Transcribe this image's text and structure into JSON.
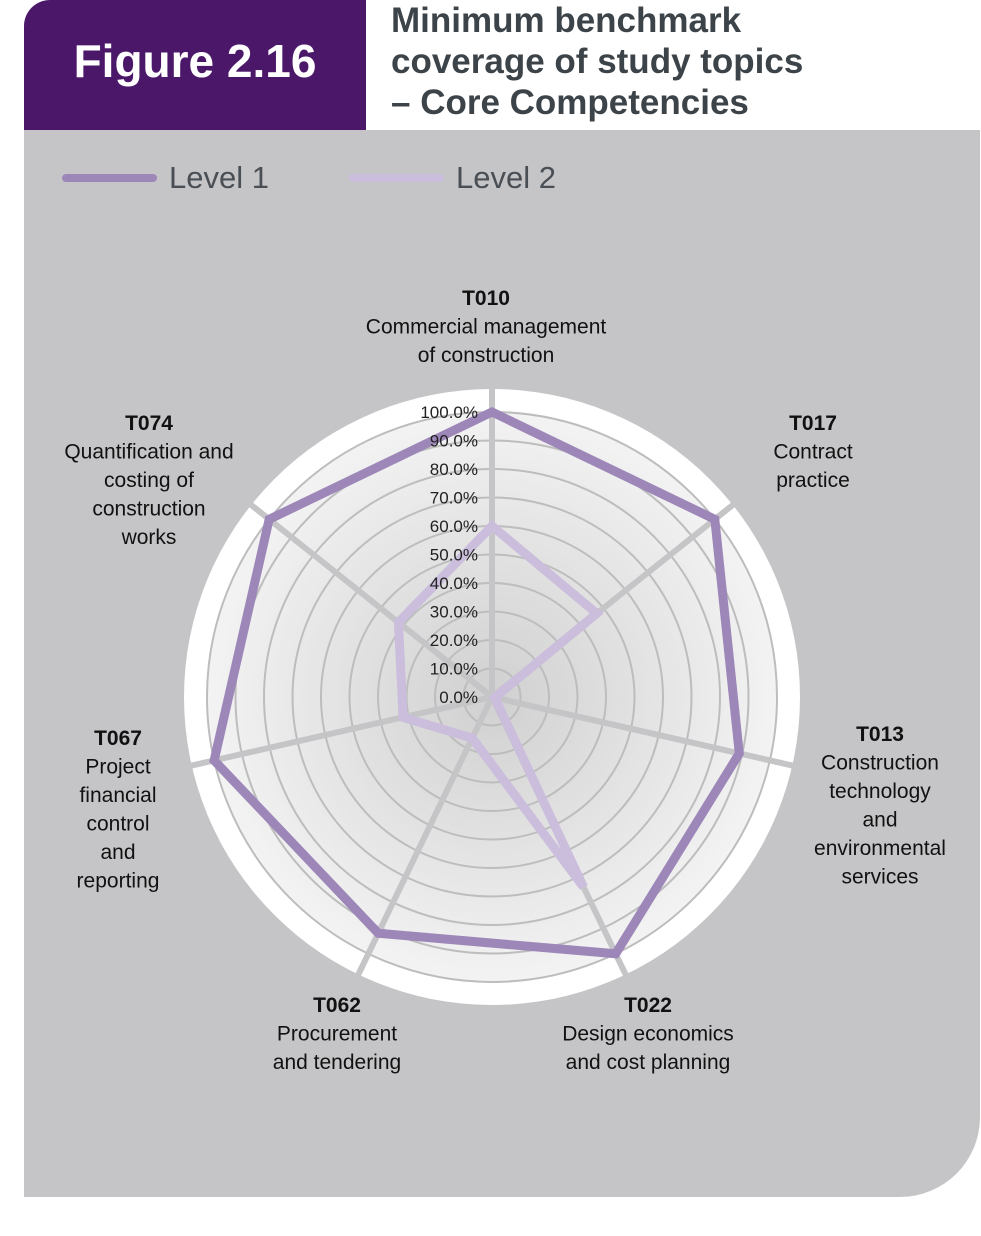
{
  "figure_label": "Figure 2.16",
  "title_lines": [
    "Minimum benchmark",
    "coverage of study topics",
    "– Core Competencies"
  ],
  "chart_data": {
    "type": "radar",
    "title": "Minimum benchmark coverage of study topics – Core Competencies",
    "categories": [
      {
        "code": "T010",
        "name_lines": [
          "Commercial management",
          "of construction"
        ]
      },
      {
        "code": "T017",
        "name_lines": [
          "Contract",
          "practice"
        ]
      },
      {
        "code": "T013",
        "name_lines": [
          "Construction",
          "technology",
          "and",
          "environmental",
          "services"
        ]
      },
      {
        "code": "T022",
        "name_lines": [
          "Design economics",
          "and cost planning"
        ]
      },
      {
        "code": "T062",
        "name_lines": [
          "Procurement",
          "and tendering"
        ]
      },
      {
        "code": "T067",
        "name_lines": [
          "Project",
          "financial",
          "control",
          "and",
          "reporting"
        ]
      },
      {
        "code": "T074",
        "name_lines": [
          "Quantification and",
          "costing of",
          "construction",
          "works"
        ]
      }
    ],
    "series": [
      {
        "name": "Level 1",
        "color": "#9d87b8",
        "values": [
          100,
          100,
          89,
          100,
          92,
          100,
          100
        ]
      },
      {
        "name": "Level 2",
        "color": "#cbbddc",
        "values": [
          60,
          47,
          1,
          74,
          16,
          32,
          42
        ]
      }
    ],
    "rlim": [
      0,
      100
    ],
    "tick_labels": [
      "0.0%",
      "10.0%",
      "20.0%",
      "30.0%",
      "40.0%",
      "50.0%",
      "60.0%",
      "70.0%",
      "80.0%",
      "90.0%",
      "100.0%"
    ],
    "grid": true,
    "legend_position": "top-left"
  }
}
